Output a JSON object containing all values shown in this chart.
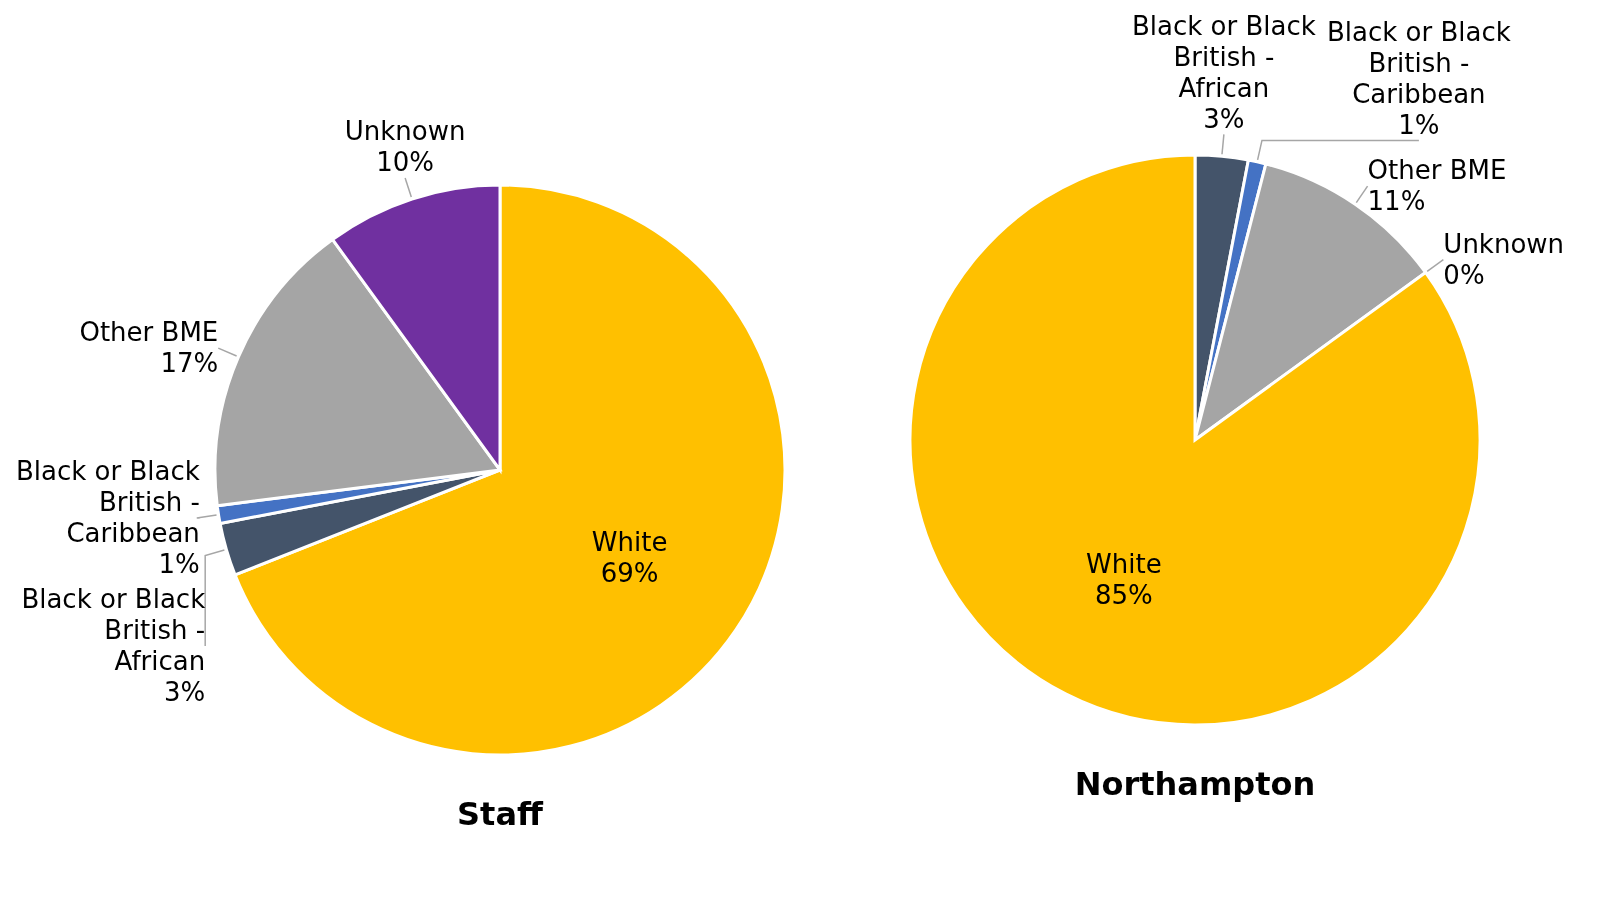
{
  "chart_data": [
    {
      "type": "pie",
      "title": "Staff",
      "categories": [
        "White",
        "Black or Black British - African",
        "Black or Black British - Caribbean",
        "Other BME",
        "Unknown"
      ],
      "values": [
        69,
        3,
        1,
        17,
        10
      ],
      "colors": [
        "#ffc000",
        "#44546a",
        "#4472c4",
        "#a5a5a5",
        "#7030a0"
      ],
      "value_labels": [
        "69%",
        "3%",
        "1%",
        "17%",
        "10%"
      ]
    },
    {
      "type": "pie",
      "title": "Northampton",
      "categories": [
        "Black or Black British - African",
        "Black or Black British - Caribbean",
        "Other BME",
        "Unknown",
        "White"
      ],
      "values": [
        3,
        1,
        11,
        0,
        85
      ],
      "colors": [
        "#44546a",
        "#4472c4",
        "#a5a5a5",
        null,
        "#ffc000"
      ],
      "value_labels": [
        "3%",
        "1%",
        "11%",
        "0%",
        "85%"
      ]
    }
  ]
}
